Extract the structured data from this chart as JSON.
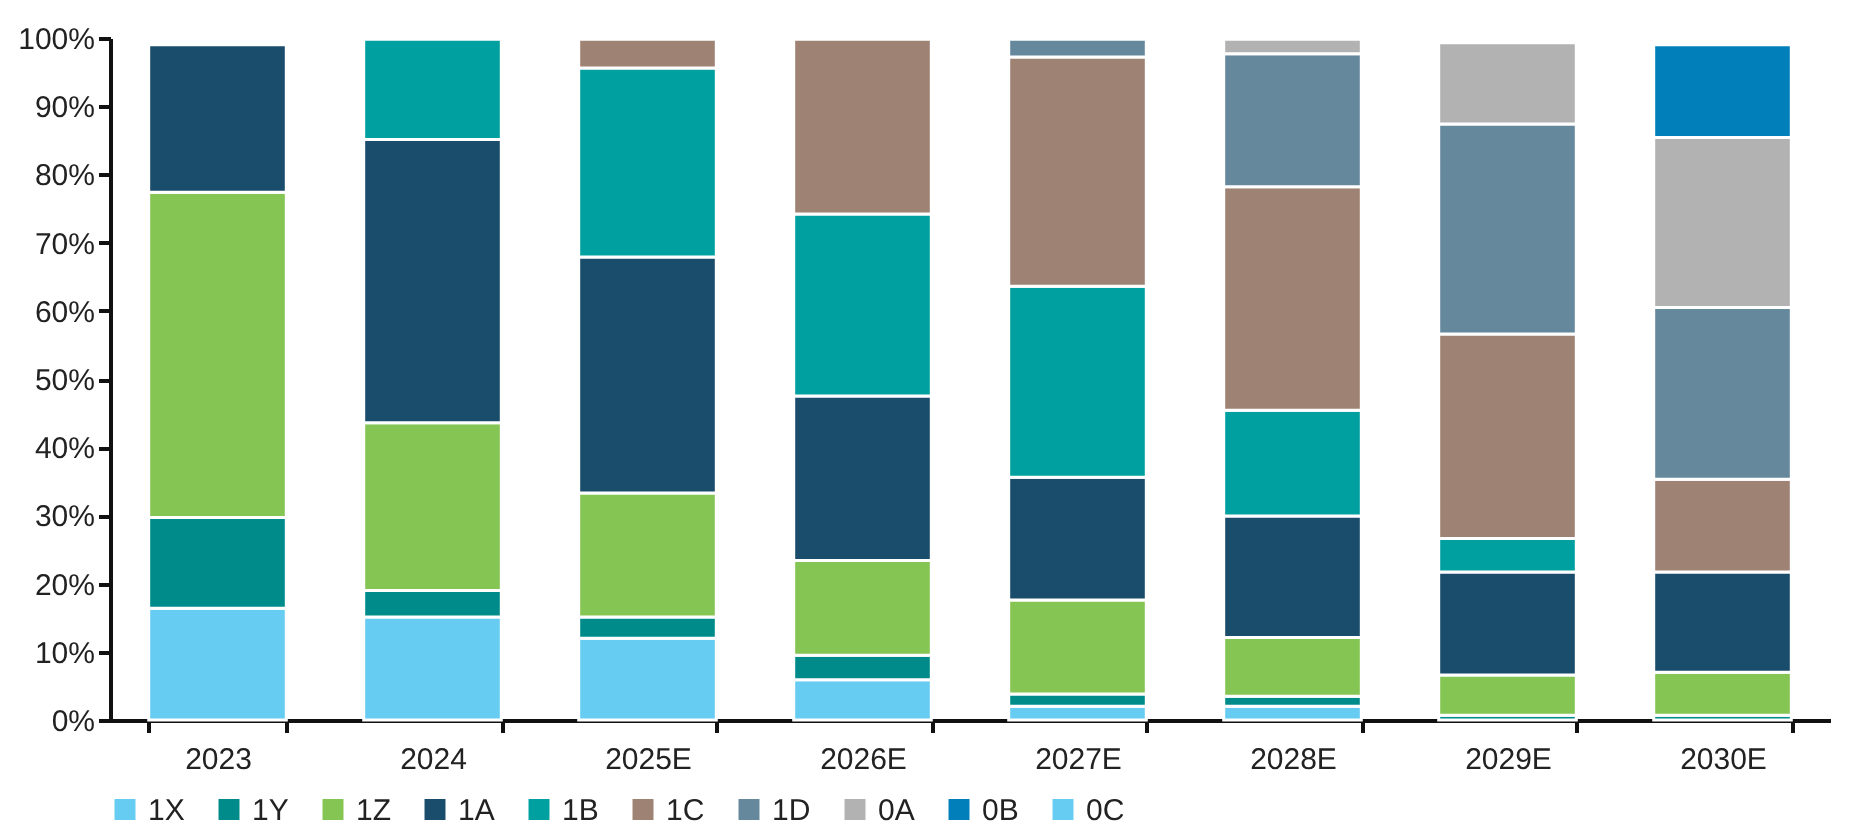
{
  "chart_data": {
    "type": "bar",
    "stacked": true,
    "categories": [
      "2023",
      "2024",
      "2025E",
      "2026E",
      "2027E",
      "2028E",
      "2029E",
      "2030E"
    ],
    "series": [
      {
        "name": "1X",
        "color": "#66ccf2",
        "values": [
          16.4,
          15.1,
          12,
          5.9,
          2,
          2,
          null,
          null
        ]
      },
      {
        "name": "1Y",
        "color": "#008b8b",
        "values": [
          13.3,
          3.9,
          3.1,
          3.6,
          1.8,
          1.5,
          0.7,
          0.7
        ]
      },
      {
        "name": "1Z",
        "color": "#85c553",
        "values": [
          47.7,
          24.6,
          18.2,
          13.9,
          13.8,
          8.6,
          5.9,
          6.3
        ]
      },
      {
        "name": "1A",
        "color": "#1a4d6b",
        "values": [
          21.6,
          41.5,
          34.6,
          24.1,
          18,
          17.8,
          15.1,
          14.7
        ]
      },
      {
        "name": "1B",
        "color": "#00a0a0",
        "values": [
          null,
          14.7,
          27.7,
          26.7,
          28,
          15.5,
          4.9,
          null
        ]
      },
      {
        "name": "1C",
        "color": "#9e8273",
        "values": [
          null,
          null,
          4.2,
          25.6,
          33.6,
          32.8,
          30,
          13.6
        ]
      },
      {
        "name": "1D",
        "color": "#66889c",
        "values": [
          null,
          null,
          null,
          null,
          2.6,
          19.5,
          30.8,
          25.2
        ]
      },
      {
        "name": "0A",
        "color": "#b2b2b2",
        "values": [
          null,
          null,
          null,
          null,
          null,
          2.1,
          11.9,
          24.9
        ]
      },
      {
        "name": "0B",
        "color": "#007fba",
        "values": [
          null,
          null,
          null,
          null,
          null,
          null,
          null,
          13.6
        ]
      },
      {
        "name": "0C",
        "color": "#66ccf2",
        "values": [
          null,
          null,
          null,
          null,
          null,
          null,
          null,
          null
        ]
      }
    ],
    "ylim": [
      0,
      100
    ],
    "yticks": [
      {
        "value": 0,
        "label": "0%"
      },
      {
        "value": 10,
        "label": "10%"
      },
      {
        "value": 20,
        "label": "20%"
      },
      {
        "value": 30,
        "label": "30%"
      },
      {
        "value": 40,
        "label": "40%"
      },
      {
        "value": 50,
        "label": "50%"
      },
      {
        "value": 60,
        "label": "60%"
      },
      {
        "value": 70,
        "label": "70%"
      },
      {
        "value": 80,
        "label": "80%"
      },
      {
        "value": 90,
        "label": "90%"
      },
      {
        "value": 100,
        "label": "100%"
      }
    ],
    "grid": false,
    "legend": "bottom"
  }
}
